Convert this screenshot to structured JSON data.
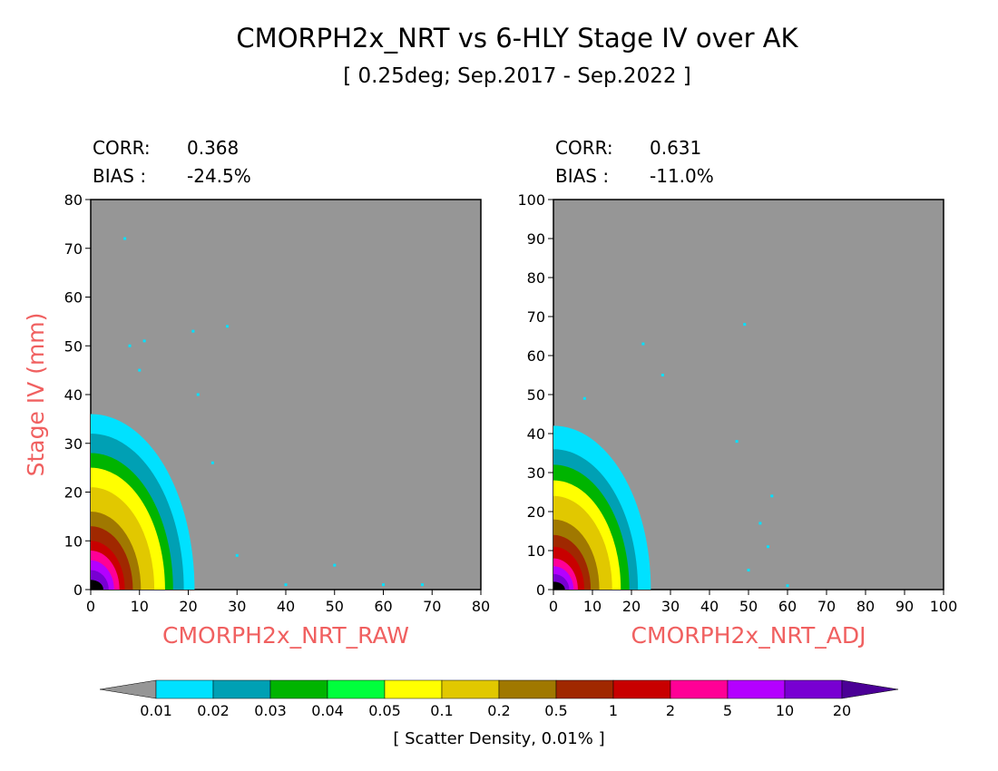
{
  "title": "CMORPH2x_NRT vs 6-HLY Stage IV over AK",
  "subtitle": "[ 0.25deg; Sep.2017 - Sep.2022 ]",
  "colors": {
    "panel_background": "#969696",
    "axis_label": "#f06060"
  },
  "chart_data": [
    {
      "type": "heatmap",
      "subtype": "scatter-density",
      "xlabel": "CMORPH2x_NRT_RAW",
      "ylabel": "Stage IV (mm)",
      "xlim": [
        0,
        80
      ],
      "ylim": [
        0,
        80
      ],
      "xticks": [
        0,
        10,
        20,
        30,
        40,
        50,
        60,
        70,
        80
      ],
      "yticks": [
        0,
        10,
        20,
        30,
        40,
        50,
        60,
        70,
        80
      ],
      "stats": {
        "corr_label": "CORR:",
        "corr_value": "0.368",
        "bias_label": "BIAS :",
        "bias_value": "-24.5%"
      },
      "density_contours_max_y_by_class": {
        "0.01": 36,
        "0.02": 32,
        "0.03": 28,
        "0.05": 25,
        "0.1": 21,
        "0.2": 16,
        "0.5": 13,
        "1": 10,
        "2": 8,
        "5": 6,
        "10": 4,
        "20": 2
      },
      "sparse_points": [
        [
          7,
          72
        ],
        [
          11,
          51
        ],
        [
          10,
          45
        ],
        [
          28,
          54
        ],
        [
          21,
          53
        ],
        [
          8,
          50
        ],
        [
          25,
          26
        ],
        [
          22,
          40
        ],
        [
          30,
          7
        ],
        [
          40,
          1
        ],
        [
          50,
          5
        ],
        [
          60,
          1
        ],
        [
          68,
          1
        ]
      ]
    },
    {
      "type": "heatmap",
      "subtype": "scatter-density",
      "xlabel": "CMORPH2x_NRT_ADJ",
      "ylabel": "",
      "xlim": [
        0,
        100
      ],
      "ylim": [
        0,
        100
      ],
      "xticks": [
        0,
        10,
        20,
        30,
        40,
        50,
        60,
        70,
        80,
        90,
        100
      ],
      "yticks": [
        0,
        10,
        20,
        30,
        40,
        50,
        60,
        70,
        80,
        90,
        100
      ],
      "stats": {
        "corr_label": "CORR:",
        "corr_value": "0.631",
        "bias_label": "BIAS :",
        "bias_value": "-11.0%"
      },
      "density_contours_max_y_by_class": {
        "0.01": 42,
        "0.02": 36,
        "0.03": 32,
        "0.05": 28,
        "0.1": 24,
        "0.2": 18,
        "0.5": 14,
        "1": 11,
        "2": 8,
        "5": 6,
        "10": 4,
        "20": 2
      },
      "sparse_points": [
        [
          49,
          68
        ],
        [
          23,
          63
        ],
        [
          28,
          55
        ],
        [
          8,
          49
        ],
        [
          47,
          38
        ],
        [
          56,
          24
        ],
        [
          53,
          17
        ],
        [
          55,
          11
        ],
        [
          50,
          5
        ],
        [
          60,
          1
        ]
      ]
    }
  ],
  "colorbar": {
    "label": "[ Scatter Density, 0.01% ]",
    "under_color": "#969696",
    "over_color": "#4b0096",
    "ticks": [
      "0.01",
      "0.02",
      "0.03",
      "0.04",
      "0.05",
      "0.1",
      "0.2",
      "0.5",
      "1",
      "2",
      "5",
      "10",
      "20"
    ],
    "colors": [
      "#00e1ff",
      "#00a0b4",
      "#00b400",
      "#00ff3c",
      "#ffff00",
      "#e1c800",
      "#a07800",
      "#a02800",
      "#c80000",
      "#ff0096",
      "#b400ff",
      "#7800d2"
    ]
  }
}
